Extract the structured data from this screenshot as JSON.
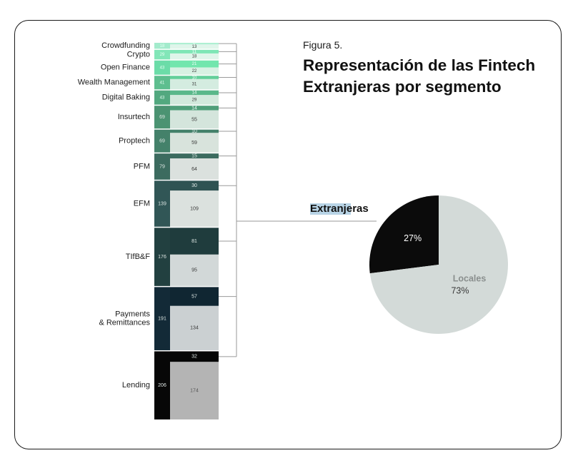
{
  "figure": {
    "label": "Figura 5.",
    "title": "Representación de las Fintech Extranjeras por segmento"
  },
  "colors": {
    "local_part": "#dbe1de",
    "line": "#9a9a9a",
    "pie_foreign": "#0b0b0b",
    "pie_local": "#d3dad8"
  },
  "chart_data": [
    {
      "type": "bar",
      "subtype": "stacked-horizontal-segments",
      "title": "",
      "categories": [
        "Crowdfunding",
        "Crypto",
        "Open Finance",
        "Wealth Management",
        "Digital Baking",
        "Insurtech",
        "Proptech",
        "PFM",
        "EFM",
        "TIfB&F",
        "Payments\n& Remittances",
        "Lending"
      ],
      "totals": [
        18,
        29,
        43,
        41,
        43,
        69,
        69,
        79,
        139,
        176,
        191,
        206
      ],
      "series": [
        {
          "name": "Extranjeras",
          "values": [
            5,
            11,
            21,
            10,
            14,
            14,
            10,
            15,
            30,
            81,
            57,
            32
          ]
        },
        {
          "name": "Locales",
          "values": [
            13,
            18,
            22,
            31,
            29,
            55,
            59,
            64,
            109,
            95,
            134,
            174
          ]
        }
      ],
      "band_colors": [
        "#a3ebcc",
        "#82e6b8",
        "#6bdca8",
        "#5ebe8f",
        "#52a87f",
        "#4b9372",
        "#44816a",
        "#3c6b5f",
        "#315656",
        "#224040",
        "#132a37",
        "#070707"
      ],
      "foreign_colors": [
        "#aef0d2",
        "#7fe6b6",
        "#72e6ad",
        "#63cf9a",
        "#5ab88a",
        "#4f9f79",
        "#44816a",
        "#3c6b5f",
        "#2f5353",
        "#1f3c3d",
        "#102632",
        "#060606"
      ],
      "local_colors": [
        "#dff5ea",
        "#dff5ea",
        "#d8f1e3",
        "#d4ece0",
        "#d2e9dc",
        "#d4e5dc",
        "#d8e3dc",
        "#dbe1de",
        "#dbe1de",
        "#d2d8d8",
        "#cbd0d2",
        "#b4b4b4"
      ]
    },
    {
      "type": "pie",
      "title": "",
      "slices": [
        {
          "name": "Extranjeras",
          "label": "",
          "value": 27,
          "value_label": "27%",
          "color": "#0b0b0b"
        },
        {
          "name": "Locales",
          "label": "Locales",
          "value": 73,
          "value_label": "73%",
          "color": "#d3dad8"
        }
      ],
      "callout": "Extranjeras"
    }
  ]
}
